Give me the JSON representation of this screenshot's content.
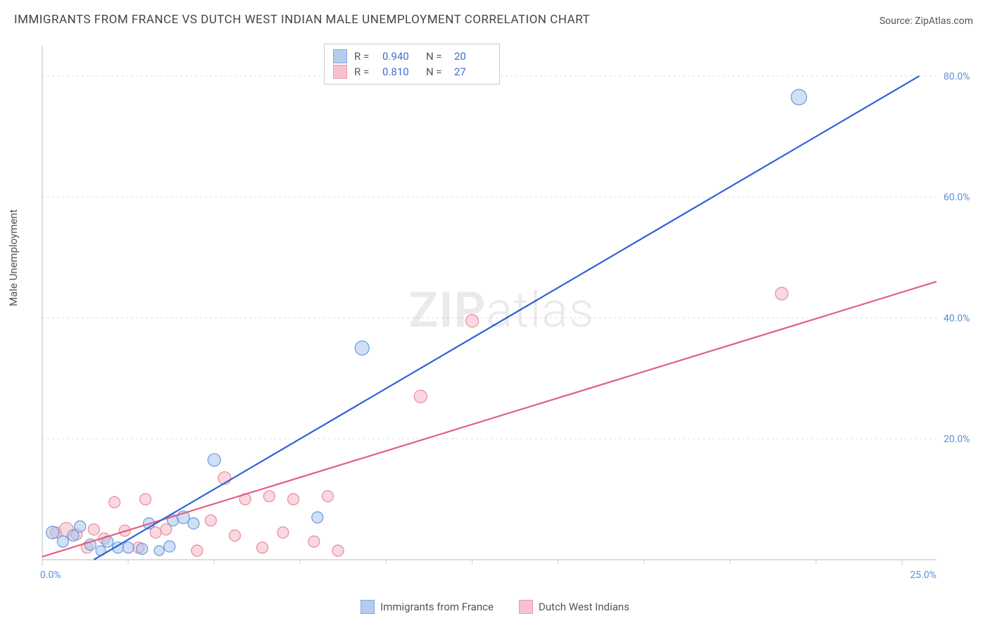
{
  "title": "IMMIGRANTS FROM FRANCE VS DUTCH WEST INDIAN MALE UNEMPLOYMENT CORRELATION CHART",
  "source_label": "Source: ",
  "source_value": "ZipAtlas.com",
  "ylabel": "Male Unemployment",
  "watermark_bold": "ZIP",
  "watermark_rest": "atlas",
  "chart": {
    "type": "scatter",
    "xlim": [
      0,
      26
    ],
    "ylim": [
      0,
      85
    ],
    "background_color": "#ffffff",
    "grid_color": "#dddddd",
    "grid_dash": "3,4",
    "axis_color": "#bbbbbb",
    "tick_color": "#cccccc",
    "label_color_blue": "#5a8fd8",
    "tick_font_size": 14,
    "x_ticks": [
      {
        "v": 0.0,
        "label": "0.0%"
      },
      {
        "v": 25.0,
        "label": "25.0%"
      }
    ],
    "x_minor_ticks": [
      2.5,
      5.0,
      7.5,
      10.0,
      12.5,
      15.0,
      17.5,
      20.0,
      22.5
    ],
    "y_ticks": [
      {
        "v": 20.0,
        "label": "20.0%"
      },
      {
        "v": 40.0,
        "label": "40.0%"
      },
      {
        "v": 60.0,
        "label": "60.0%"
      },
      {
        "v": 80.0,
        "label": "80.0%"
      }
    ],
    "series": [
      {
        "name": "Immigrants from France",
        "fill": "#a9c5eb",
        "fill_opacity": 0.55,
        "stroke": "#6a9be0",
        "line_color": "#2f63d6",
        "line_width": 2.2,
        "marker_r": 9,
        "R_label": "R =",
        "R": "0.940",
        "N_label": "N =",
        "N": "20",
        "trend": {
          "x1": 1.5,
          "y1": 0,
          "x2": 25.5,
          "y2": 80
        },
        "points": [
          {
            "x": 0.3,
            "y": 4.5,
            "r": 9
          },
          {
            "x": 0.6,
            "y": 3.0,
            "r": 8
          },
          {
            "x": 0.9,
            "y": 4.0,
            "r": 8
          },
          {
            "x": 1.1,
            "y": 5.5,
            "r": 8
          },
          {
            "x": 1.4,
            "y": 2.5,
            "r": 8
          },
          {
            "x": 1.7,
            "y": 1.5,
            "r": 7
          },
          {
            "x": 1.9,
            "y": 3.0,
            "r": 8
          },
          {
            "x": 2.2,
            "y": 2.0,
            "r": 8
          },
          {
            "x": 2.5,
            "y": 2.0,
            "r": 8
          },
          {
            "x": 2.9,
            "y": 1.8,
            "r": 8
          },
          {
            "x": 3.1,
            "y": 6.0,
            "r": 8
          },
          {
            "x": 3.4,
            "y": 1.5,
            "r": 7
          },
          {
            "x": 3.7,
            "y": 2.2,
            "r": 8
          },
          {
            "x": 3.8,
            "y": 6.5,
            "r": 8
          },
          {
            "x": 4.1,
            "y": 7.0,
            "r": 9
          },
          {
            "x": 4.4,
            "y": 6.0,
            "r": 8
          },
          {
            "x": 5.0,
            "y": 16.5,
            "r": 9
          },
          {
            "x": 8.0,
            "y": 7.0,
            "r": 8
          },
          {
            "x": 9.3,
            "y": 35.0,
            "r": 10
          },
          {
            "x": 22.0,
            "y": 76.5,
            "r": 11
          }
        ]
      },
      {
        "name": "Dutch West Indians",
        "fill": "#f4b8c5",
        "fill_opacity": 0.55,
        "stroke": "#e98aa0",
        "line_color": "#e35f82",
        "line_width": 2.2,
        "marker_r": 9,
        "R_label": "R =",
        "R": "0.810",
        "N_label": "N =",
        "N": "27",
        "trend": {
          "x1": 0,
          "y1": 0.5,
          "x2": 26,
          "y2": 46
        },
        "points": [
          {
            "x": 0.4,
            "y": 4.5,
            "r": 8
          },
          {
            "x": 0.7,
            "y": 5.0,
            "r": 10
          },
          {
            "x": 1.0,
            "y": 4.2,
            "r": 8
          },
          {
            "x": 1.3,
            "y": 2.0,
            "r": 8
          },
          {
            "x": 1.5,
            "y": 5.0,
            "r": 8
          },
          {
            "x": 1.8,
            "y": 3.5,
            "r": 8
          },
          {
            "x": 2.1,
            "y": 9.5,
            "r": 8
          },
          {
            "x": 2.4,
            "y": 4.8,
            "r": 8
          },
          {
            "x": 2.8,
            "y": 2.0,
            "r": 8
          },
          {
            "x": 3.0,
            "y": 10.0,
            "r": 8
          },
          {
            "x": 3.3,
            "y": 4.5,
            "r": 8
          },
          {
            "x": 3.6,
            "y": 5.0,
            "r": 8
          },
          {
            "x": 4.5,
            "y": 1.5,
            "r": 8
          },
          {
            "x": 4.9,
            "y": 6.5,
            "r": 8
          },
          {
            "x": 5.3,
            "y": 13.5,
            "r": 9
          },
          {
            "x": 5.6,
            "y": 4.0,
            "r": 8
          },
          {
            "x": 5.9,
            "y": 10.0,
            "r": 8
          },
          {
            "x": 6.4,
            "y": 2.0,
            "r": 8
          },
          {
            "x": 6.6,
            "y": 10.5,
            "r": 8
          },
          {
            "x": 7.0,
            "y": 4.5,
            "r": 8
          },
          {
            "x": 7.3,
            "y": 10.0,
            "r": 8
          },
          {
            "x": 7.9,
            "y": 3.0,
            "r": 8
          },
          {
            "x": 8.3,
            "y": 10.5,
            "r": 8
          },
          {
            "x": 8.6,
            "y": 1.5,
            "r": 8
          },
          {
            "x": 11.0,
            "y": 27.0,
            "r": 9
          },
          {
            "x": 12.5,
            "y": 39.5,
            "r": 9
          },
          {
            "x": 21.5,
            "y": 44.0,
            "r": 9
          }
        ]
      }
    ]
  },
  "legend_bottom": [
    {
      "label": "Immigrants from France",
      "fill": "#a9c5eb",
      "stroke": "#6a9be0"
    },
    {
      "label": "Dutch West Indians",
      "fill": "#f4b8c5",
      "stroke": "#e98aa0"
    }
  ]
}
